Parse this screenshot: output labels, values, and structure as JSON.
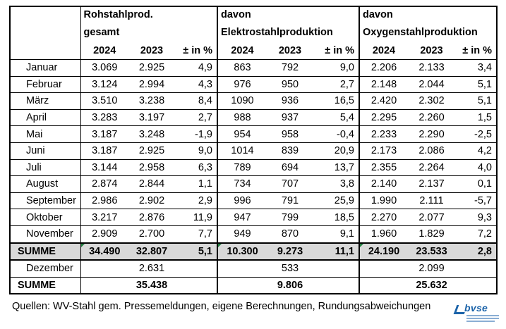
{
  "header": {
    "groups": [
      {
        "line1": "Rohstahlprod.",
        "line2": "gesamt"
      },
      {
        "line1": "davon",
        "line2": "Elektrostahlproduktion"
      },
      {
        "line1": "davon",
        "line2": "Oxygenstahlproduktion"
      }
    ],
    "year_current": "2024",
    "year_previous": "2023",
    "pct_label": "± in %"
  },
  "rows": [
    {
      "month": "Januar",
      "v": [
        "3.069",
        "2.925",
        "4,9",
        "863",
        "792",
        "9,0",
        "2.206",
        "2.133",
        "3,4"
      ]
    },
    {
      "month": "Februar",
      "v": [
        "3.124",
        "2.994",
        "4,3",
        "976",
        "950",
        "2,7",
        "2.148",
        "2.044",
        "5,1"
      ]
    },
    {
      "month": "März",
      "v": [
        "3.510",
        "3.238",
        "8,4",
        "1090",
        "936",
        "16,5",
        "2.420",
        "2.302",
        "5,1"
      ]
    },
    {
      "month": "April",
      "v": [
        "3.283",
        "3.197",
        "2,7",
        "988",
        "937",
        "5,4",
        "2.295",
        "2.260",
        "1,5"
      ]
    },
    {
      "month": "Mai",
      "v": [
        "3.187",
        "3.248",
        "-1,9",
        "954",
        "958",
        "-0,4",
        "2.233",
        "2.290",
        "-2,5"
      ]
    },
    {
      "month": "Juni",
      "v": [
        "3.187",
        "2.925",
        "9,0",
        "1014",
        "839",
        "20,9",
        "2.173",
        "2.086",
        "4,2"
      ]
    },
    {
      "month": "Juli",
      "v": [
        "3.144",
        "2.958",
        "6,3",
        "789",
        "694",
        "13,7",
        "2.355",
        "2.264",
        "4,0"
      ]
    },
    {
      "month": "August",
      "v": [
        "2.874",
        "2.844",
        "1,1",
        "734",
        "707",
        "3,8",
        "2.140",
        "2.137",
        "0,1"
      ]
    },
    {
      "month": "September",
      "v": [
        "2.986",
        "2.902",
        "2,9",
        "996",
        "791",
        "25,9",
        "1.990",
        "2.111",
        "-5,7"
      ]
    },
    {
      "month": "Oktober",
      "v": [
        "3.217",
        "2.876",
        "11,9",
        "947",
        "799",
        "18,5",
        "2.270",
        "2.077",
        "9,3"
      ]
    },
    {
      "month": "November",
      "v": [
        "2.909",
        "2.700",
        "7,7",
        "949",
        "870",
        "9,1",
        "1.960",
        "1.829",
        "7,2"
      ]
    }
  ],
  "summe": {
    "label": "SUMME",
    "v": [
      "34.490",
      "32.807",
      "5,1",
      "10.300",
      "9.273",
      "11,1",
      "24.190",
      "23.533",
      "2,8"
    ]
  },
  "dezember": {
    "label": "Dezember",
    "v": [
      "",
      "2.631",
      "",
      "",
      "533",
      "",
      "",
      "2.099",
      ""
    ]
  },
  "summe_total": {
    "label": "SUMME",
    "v": [
      "",
      "35.438",
      "",
      "",
      "9.806",
      "",
      "",
      "25.632",
      ""
    ]
  },
  "footer": "Quellen: WV-Stahl gem. Pressemeldungen, eigene Berechnungen, Rundungsabweichungen",
  "logo": {
    "text": "bvse"
  }
}
